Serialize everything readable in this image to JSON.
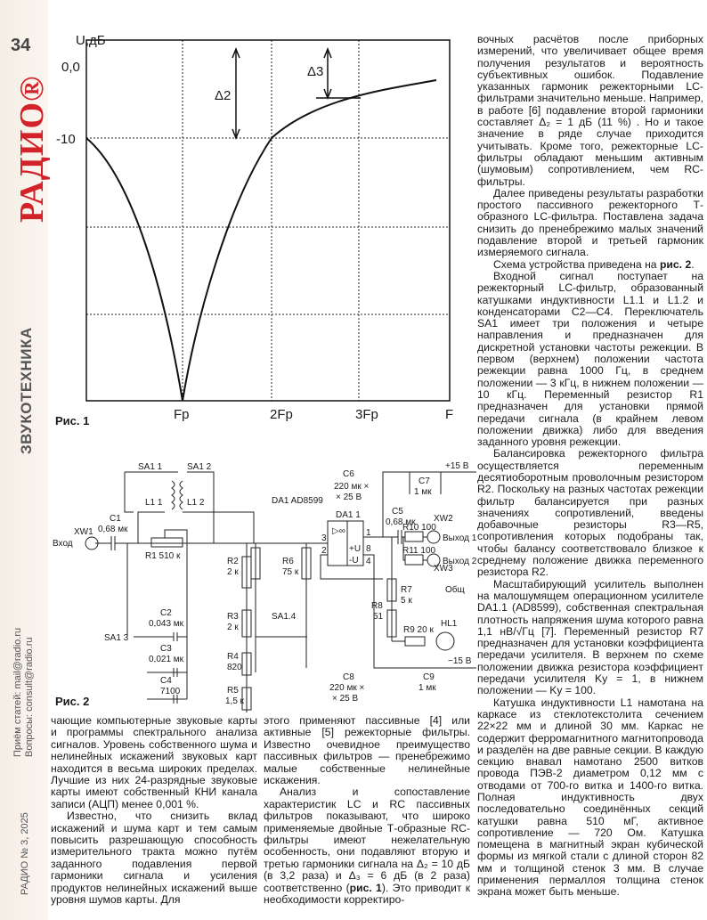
{
  "sidebar": {
    "page_number": "34",
    "logo": "РАДИО®",
    "section": "ЗВУКОТЕХНИКА",
    "contacts": [
      "Приём статей: mail@radio.ru",
      "Вопросы: consult@radio.ru"
    ],
    "issue": "РАДИО № 3, 2025",
    "brand_color": "#d2232a"
  },
  "fig1": {
    "caption": "Рис. 1",
    "y_axis_label": "U,дБ",
    "y_ticks": [
      "0,0",
      "-10"
    ],
    "x_ticks": [
      "Fp",
      "2Fp",
      "3Fp",
      "F"
    ],
    "delta2": "Δ2",
    "delta3": "Δ3"
  },
  "fig2": {
    "caption": "Рис. 2",
    "labels": {
      "sa11": "SA1 1",
      "sa12": "SA1 2",
      "l11": "L1 1",
      "l12": "L1 2",
      "da1": "DA1 AD8599",
      "xw1": "XW1",
      "vhod": "Вход",
      "c1": "C1",
      "c1v": "0,68 мк",
      "r1": "R1 510 к",
      "r2": "R2",
      "r2v": "2 к",
      "r6": "R6",
      "r6v": "75 к",
      "r3": "R3",
      "r3v": "2 к",
      "sa14": "SA1.4",
      "r4": "R4",
      "r4v": "820",
      "r5": "R5",
      "r5v": "1,5 к",
      "sa13": "SA1 3",
      "c2": "C2",
      "c2v": "0,043 мк",
      "c3": "C3",
      "c3v": "0,021 мк",
      "c4": "C4",
      "c4v": "7100",
      "c6": "C6",
      "c6v1": "220 мк ×",
      "c6v2": "× 25 В",
      "c7": "C7",
      "c7v": "1 мк",
      "p15": "+15 В",
      "da11": "DA1 1",
      "c5": "C5",
      "c5v": "0,68 мк",
      "r10": "R10 100",
      "r11": "R11 100",
      "xw2": "XW2",
      "xw3": "XW3",
      "out1": "Выход 1",
      "out2": "Выход 2",
      "r7": "R7",
      "r7v": "5 к",
      "gnd": "Общ",
      "r8": "R8",
      "r8v": "51",
      "r9": "R9 20 к",
      "hl1": "HL1",
      "c8": "C8",
      "c8v1": "220 мк ×",
      "c8v2": "× 25 В",
      "c9": "C9",
      "c9v": "1 мк",
      "m15": "−15 В",
      "pin3": "3",
      "pin2": "2",
      "pin1": "1",
      "pin8": "8",
      "pin4": "4",
      "pu": "+U",
      "mu": "-U",
      "amp": "▷∞"
    }
  },
  "left_col": {
    "p1": "чающие компьютерные звуковые карты и программы спектрального анализа сигналов. Уровень собственного шума и нелинейных искажений звуковых карт находится в весьма широких пределах. Лучшие из них 24-разрядные звуковые карты имеют собственный КНИ канала записи (АЦП) менее 0,001 %.",
    "p2": "Известно, что снизить вклад искажений и шума карт и тем самым повысить разрешающую способность измерительного тракта можно путём заданного подавления первой гармоники сигнала и усиления продуктов нелинейных искажений выше уровня шумов карты. Для"
  },
  "mid_col": {
    "p1": "этого применяют пассивные [4] или активные [5] режекторные фильтры. Известно очевидное преимущество пассивных фильтров — пренебрежимо малые собственные нелинейные искажения.",
    "p2a": "Анализ и сопоставление характеристик LC и RC пассивных фильтров показывают, что широко применяемые двойные Т-образные RC-фильтры имеют нежелательную особенность, они подавляют вторую и третью гармоники сигнала на Δ₂ = 10 дБ (в 3,2 раза) и Δ₃ = 6 дБ (в 2 раза) соответственно (",
    "p2b": "рис. 1",
    "p2c": "). Это приводит к необходимости корректиро-"
  },
  "right_col": {
    "p1": "вочных расчётов после приборных измерений, что увеличивает общее время получения результатов и вероятность субъективных ошибок. Подавление указанных гармоник режекторными LC-фильтрами значительно меньше. Например, в работе [6] подавление второй гармоники составляет Δ₂ = 1 дБ (11 %) . Но и такое значение в ряде случае приходится учитывать. Кроме того, режекторные LC-фильтры обладают меньшим активным (шумовым) сопротивлением, чем RC-фильтры.",
    "p2": "Далее приведены результаты разработки простого пассивного режекторного Т-образного LC-фильтра. Поставлена задача снизить до пренебрежимо малых значений подавление второй и третьей гармоник измеряемого сигнала.",
    "p3a": "Схема устройства приведена на ",
    "p3b": "рис. 2",
    "p3c": ".",
    "p4": "Входной сигнал поступает на режекторный LC-фильтр, образованный катушками индуктивности L1.1 и L1.2 и конденсаторами C2—C4. Переключатель SA1 имеет три положения и четыре направления и предназначен для дискретной установки частоты режекции. В первом (верхнем) положении частота режекции равна 1000 Гц, в среднем положении — 3 кГц, в нижнем положении — 10 кГц. Переменный резистор R1 предназначен для установки прямой передачи сигнала (в крайнем левом положении движка) либо для введения заданного уровня режекции.",
    "p5": "Балансировка режекторного фильтра осуществляется переменным десятиоборотным проволочным резистором R2. Поскольку на разных частотах режекции фильтр балансируется при разных значениях сопротивлений, введены добавочные резисторы R3—R5, сопротивления которых подобраны так, чтобы балансу соответствовало близкое к среднему положение движка переменного резистора R2.",
    "p6": "Масштабирующий усилитель выполнен на малошумящем операционном усилителе DA1.1 (AD8599), собственная спектральная плотность напряжения шума которого равна 1,1 нВ/√Гц [7]. Переменный резистор R7 предназначен для установки коэффициента передачи усилителя. В верхнем по схеме положении движка резистора коэффициент передачи усилителя Kу = 1, в нижнем положении — Kу = 100.",
    "p7": "Катушка индуктивности L1 намотана на каркасе из стеклотекстолита сечением 22×22 мм и длиной 30 мм. Каркас не содержит ферромагнитного магнитопровода и разделён на две равные секции. В каждую секцию внавал намотано 2500 витков провода ПЭВ-2 диаметром 0,12 мм с отводами от 700-го витка и 1400-го витка. Полная индуктивность двух последовательно соединённых секций катушки равна 510 мГ, активное сопротивление — 720 Ом. Катушка помещена в магнитный экран кубической формы из мягкой стали с длиной сторон 82 мм и толщиной стенок 3 мм. В случае применения пермаллоя толщина стенок экрана может быть меньше."
  }
}
